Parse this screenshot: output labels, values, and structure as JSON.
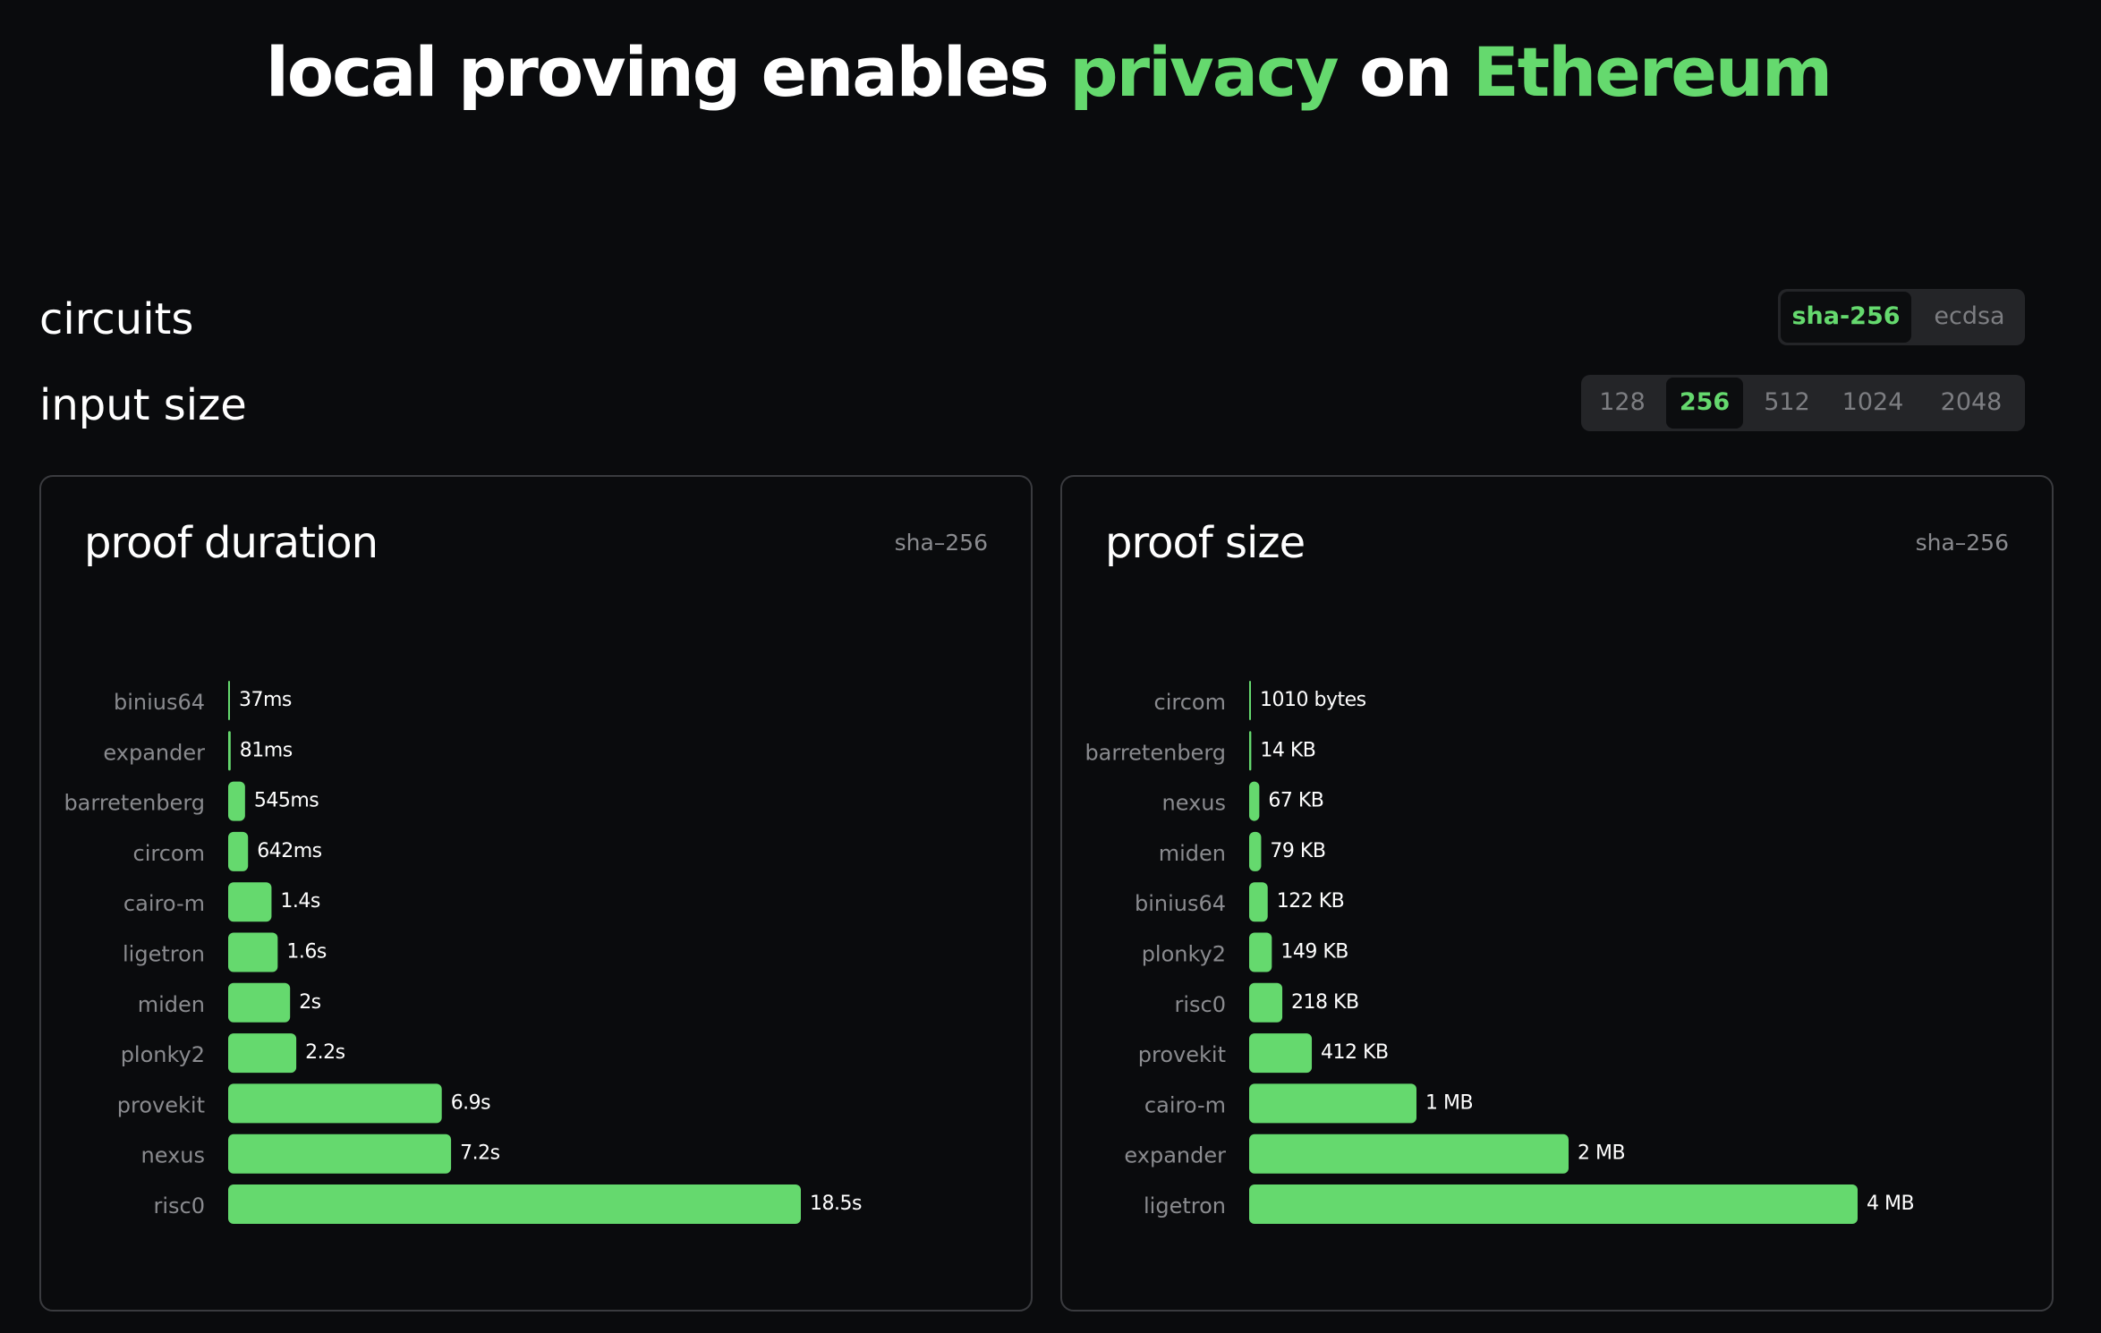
{
  "header": {
    "title": [
      "local proving enables ",
      "privacy",
      " on ",
      "Ethereum"
    ]
  },
  "controls": [
    {
      "label": "circuits",
      "options": [
        "sha-256",
        "ecdsa"
      ],
      "selected": 0
    },
    {
      "label": "input size",
      "options": [
        "128",
        "256",
        "512",
        "1024",
        "2048"
      ],
      "selected": 1
    }
  ],
  "chart_data": [
    {
      "type": "bar",
      "orientation": "horizontal",
      "title": "proof duration",
      "subtitle": "sha–256",
      "color": "#65d96e",
      "categories": [
        "binius64",
        "expander",
        "barretenberg",
        "circom",
        "cairo-m",
        "ligetron",
        "miden",
        "plonky2",
        "provekit",
        "nexus",
        "risc0"
      ],
      "values": [
        37,
        81,
        545,
        642,
        1400,
        1600,
        2000,
        2200,
        6900,
        7200,
        18500
      ],
      "value_labels": [
        "37ms",
        "81ms",
        "545ms",
        "642ms",
        "1.4s",
        "1.6s",
        "2s",
        "2.2s",
        "6.9s",
        "7.2s",
        "18.5s"
      ]
    },
    {
      "type": "bar",
      "orientation": "horizontal",
      "title": "proof size",
      "subtitle": "sha–256",
      "color": "#65d96e",
      "categories": [
        "circom",
        "barretenberg",
        "nexus",
        "miden",
        "binius64",
        "plonky2",
        "risc0",
        "provekit",
        "cairo-m",
        "expander",
        "ligetron"
      ],
      "values": [
        1010,
        14000,
        67000,
        79000,
        122000,
        149000,
        218000,
        412000,
        1100000,
        2100000,
        4000000
      ],
      "value_labels": [
        "1010 bytes",
        "14 KB",
        "67 KB",
        "79 KB",
        "122 KB",
        "149 KB",
        "218 KB",
        "412 KB",
        "1 MB",
        "2 MB",
        "4 MB"
      ]
    }
  ]
}
